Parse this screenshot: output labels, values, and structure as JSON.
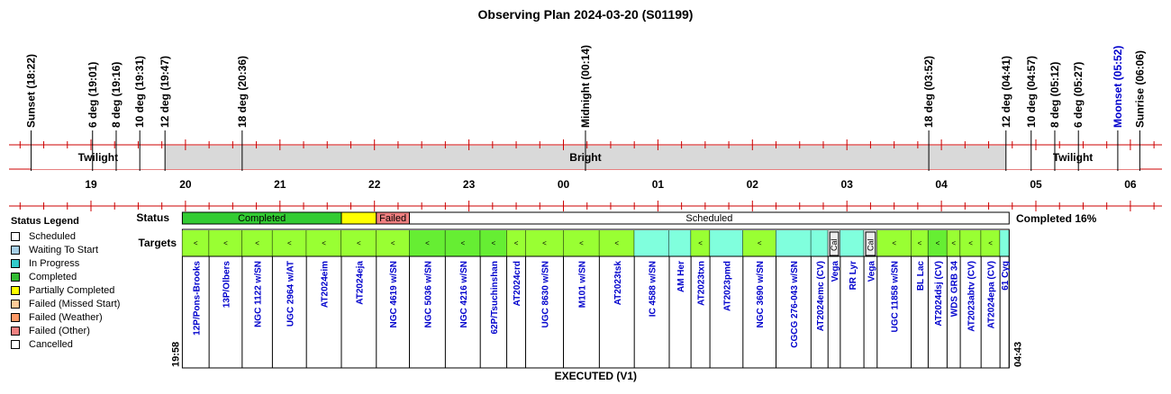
{
  "chart_data": {
    "type": "timeline",
    "title": "Observing Plan 2024-03-20 (S01199)",
    "events": [
      {
        "label": "Sunset (18:22)",
        "t": 18.3667,
        "color": "#000000"
      },
      {
        "label": "6 deg (19:01)",
        "t": 19.0167,
        "color": "#000000"
      },
      {
        "label": "8 deg (19:16)",
        "t": 19.2667,
        "color": "#000000"
      },
      {
        "label": "10 deg (19:31)",
        "t": 19.5167,
        "color": "#000000"
      },
      {
        "label": "12 deg (19:47)",
        "t": 19.7833,
        "color": "#000000"
      },
      {
        "label": "18 deg (20:36)",
        "t": 20.6,
        "color": "#000000"
      },
      {
        "label": "Midnight (00:14)",
        "t": 24.2333,
        "color": "#000000"
      },
      {
        "label": "18 deg (03:52)",
        "t": 27.8667,
        "color": "#000000"
      },
      {
        "label": "12 deg (04:41)",
        "t": 28.6833,
        "color": "#000000"
      },
      {
        "label": "10 deg (04:57)",
        "t": 28.95,
        "color": "#000000"
      },
      {
        "label": "8 deg (05:12)",
        "t": 29.2,
        "color": "#000000"
      },
      {
        "label": "6 deg (05:27)",
        "t": 29.45,
        "color": "#000000"
      },
      {
        "label": "Moonset (05:52)",
        "t": 29.8667,
        "color": "#0000cc"
      },
      {
        "label": "Sunrise (06:06)",
        "t": 30.1,
        "color": "#000000"
      }
    ],
    "bands": [
      {
        "label": "Twilight",
        "from": 18.3667,
        "to": 19.7833,
        "fill": "#ffffff"
      },
      {
        "label": "Bright",
        "from": 19.7833,
        "to": 28.6833,
        "fill": "#d9d9d9"
      },
      {
        "label": "Twilight",
        "from": 28.6833,
        "to": 30.1,
        "fill": "#ffffff"
      }
    ],
    "hour_ticks": [
      {
        "label": "19",
        "t": 19
      },
      {
        "label": "20",
        "t": 20
      },
      {
        "label": "21",
        "t": 21
      },
      {
        "label": "22",
        "t": 22
      },
      {
        "label": "23",
        "t": 23
      },
      {
        "label": "00",
        "t": 24
      },
      {
        "label": "01",
        "t": 25
      },
      {
        "label": "02",
        "t": 26
      },
      {
        "label": "03",
        "t": 27
      },
      {
        "label": "04",
        "t": 28
      },
      {
        "label": "05",
        "t": 29
      },
      {
        "label": "06",
        "t": 30
      }
    ],
    "plan_start": {
      "label": "19:58",
      "t": 19.9667
    },
    "plan_end": {
      "label": "04:43",
      "t": 28.7167
    },
    "status_label": "Status",
    "targets_label": "Targets",
    "status_segments": [
      {
        "label": "Completed",
        "from": 19.9667,
        "to": 21.65,
        "color": "#33cc33"
      },
      {
        "label": "",
        "from": 21.65,
        "to": 22.02,
        "color": "#ffff00"
      },
      {
        "label": "Failed",
        "from": 22.02,
        "to": 22.37,
        "color": "#f08080"
      },
      {
        "label": "Scheduled",
        "from": 22.37,
        "to": 28.7167,
        "color": "#ffffff"
      }
    ],
    "completed_text": "Completed 16%",
    "targets": [
      {
        "name": "12P/Pons-Brooks",
        "from": 19.9667,
        "to": 20.25,
        "color": "#99ff33",
        "mark": "<",
        "name_color": "#0000cc"
      },
      {
        "name": "13P/Olbers",
        "from": 20.25,
        "to": 20.6,
        "color": "#99ff33",
        "mark": "<",
        "name_color": "#0000cc"
      },
      {
        "name": "NGC 1122 w/SN",
        "from": 20.6,
        "to": 20.92,
        "color": "#99ff33",
        "mark": "<",
        "name_color": "#0000cc"
      },
      {
        "name": "UGC 2964 w/AT",
        "from": 20.92,
        "to": 21.28,
        "color": "#99ff33",
        "mark": "<",
        "name_color": "#0000cc"
      },
      {
        "name": "AT2024eim",
        "from": 21.28,
        "to": 21.65,
        "color": "#99ff33",
        "mark": "<",
        "name_color": "#0000cc"
      },
      {
        "name": "AT2024eja",
        "from": 21.65,
        "to": 22.02,
        "color": "#99ff33",
        "mark": "<",
        "name_color": "#0000cc"
      },
      {
        "name": "NGC 4619 w/SN",
        "from": 22.02,
        "to": 22.37,
        "color": "#99ff33",
        "mark": "<",
        "name_color": "#0000cc"
      },
      {
        "name": "NGC 5036 w/SN",
        "from": 22.37,
        "to": 22.75,
        "color": "#66ee33",
        "mark": "<",
        "name_color": "#0000cc"
      },
      {
        "name": "NGC 4216 w/SN",
        "from": 22.75,
        "to": 23.12,
        "color": "#66ee33",
        "mark": "<",
        "name_color": "#0000cc"
      },
      {
        "name": "62P/Tsuchinshan",
        "from": 23.12,
        "to": 23.4,
        "color": "#66ee33",
        "mark": "<",
        "name_color": "#0000cc"
      },
      {
        "name": "AT2024crd",
        "from": 23.4,
        "to": 23.6,
        "color": "#99ff33",
        "mark": "<",
        "name_color": "#0000cc"
      },
      {
        "name": "UGC 8630 w/SN",
        "from": 23.6,
        "to": 24.0,
        "color": "#99ff33",
        "mark": "<",
        "name_color": "#0000cc"
      },
      {
        "name": "M101 w/SN",
        "from": 24.0,
        "to": 24.38,
        "color": "#99ff33",
        "mark": "<",
        "name_color": "#0000cc"
      },
      {
        "name": "AT2023tsk",
        "from": 24.38,
        "to": 24.75,
        "color": "#99ff33",
        "mark": "<",
        "name_color": "#0000cc"
      },
      {
        "name": "IC 4588 w/SN",
        "from": 24.75,
        "to": 25.12,
        "color": "#80ffdd",
        "mark": "",
        "name_color": "#0000cc"
      },
      {
        "name": "AM Her",
        "from": 25.12,
        "to": 25.35,
        "color": "#80ffdd",
        "mark": "",
        "name_color": "#0000cc"
      },
      {
        "name": "AT2023txn",
        "from": 25.35,
        "to": 25.55,
        "color": "#99ff33",
        "mark": "<",
        "name_color": "#0000cc"
      },
      {
        "name": "AT2023pmd",
        "from": 25.55,
        "to": 25.9,
        "color": "#80ffdd",
        "mark": "",
        "name_color": "#0000cc"
      },
      {
        "name": "NGC 3690 w/SN",
        "from": 25.9,
        "to": 26.25,
        "color": "#99ff33",
        "mark": "<",
        "name_color": "#0000cc"
      },
      {
        "name": "CGCG 276-043 w/SN",
        "from": 26.25,
        "to": 26.62,
        "color": "#80ffdd",
        "mark": "",
        "name_color": "#0000cc"
      },
      {
        "name": "AT2024emc (CV)",
        "from": 26.62,
        "to": 26.8,
        "color": "#80ffdd",
        "mark": "",
        "name_color": "#0000cc"
      },
      {
        "name": "Vega",
        "from": 26.8,
        "to": 26.93,
        "color": "#dddddd",
        "mark": "Cal",
        "name_color": "#0000cc"
      },
      {
        "name": "RR Lyr",
        "from": 26.93,
        "to": 27.18,
        "color": "#80ffdd",
        "mark": "",
        "name_color": "#0000cc"
      },
      {
        "name": "Vega",
        "from": 27.18,
        "to": 27.32,
        "color": "#dddddd",
        "mark": "Cal",
        "name_color": "#0000cc"
      },
      {
        "name": "UGC 11858 w/SN",
        "from": 27.32,
        "to": 27.68,
        "color": "#99ff33",
        "mark": "<",
        "name_color": "#0000cc"
      },
      {
        "name": "BL Lac",
        "from": 27.68,
        "to": 27.86,
        "color": "#99ff33",
        "mark": "<",
        "name_color": "#0000cc"
      },
      {
        "name": "AT2024dsj (CV)",
        "from": 27.86,
        "to": 28.06,
        "color": "#66ee33",
        "mark": "<",
        "name_color": "#0000cc"
      },
      {
        "name": "WDS GRB 34",
        "from": 28.06,
        "to": 28.2,
        "color": "#99ff33",
        "mark": "<",
        "name_color": "#0000cc"
      },
      {
        "name": "AT2023abtv (CV)",
        "from": 28.2,
        "to": 28.42,
        "color": "#99ff33",
        "mark": "<",
        "name_color": "#0000cc"
      },
      {
        "name": "AT2024epa (CV)",
        "from": 28.42,
        "to": 28.62,
        "color": "#99ff33",
        "mark": "<",
        "name_color": "#0000cc"
      },
      {
        "name": "61 Cyg",
        "from": 28.62,
        "to": 28.7167,
        "color": "#80ffdd",
        "mark": "",
        "name_color": "#0000cc"
      }
    ],
    "footer": "EXECUTED (V1)"
  },
  "legend": {
    "title": "Status Legend",
    "items": [
      {
        "label": "Scheduled",
        "color": "#ffffff"
      },
      {
        "label": "Waiting To Start",
        "color": "#a6cfe6"
      },
      {
        "label": "In Progress",
        "color": "#33cccc"
      },
      {
        "label": "Completed",
        "color": "#33bb33"
      },
      {
        "label": "Partially Completed",
        "color": "#ffff00"
      },
      {
        "label": "Failed (Missed Start)",
        "color": "#ffcc99"
      },
      {
        "label": "Failed (Weather)",
        "color": "#ff9966"
      },
      {
        "label": "Failed (Other)",
        "color": "#f08080"
      },
      {
        "label": "Cancelled",
        "color": "#ffffff"
      }
    ]
  }
}
